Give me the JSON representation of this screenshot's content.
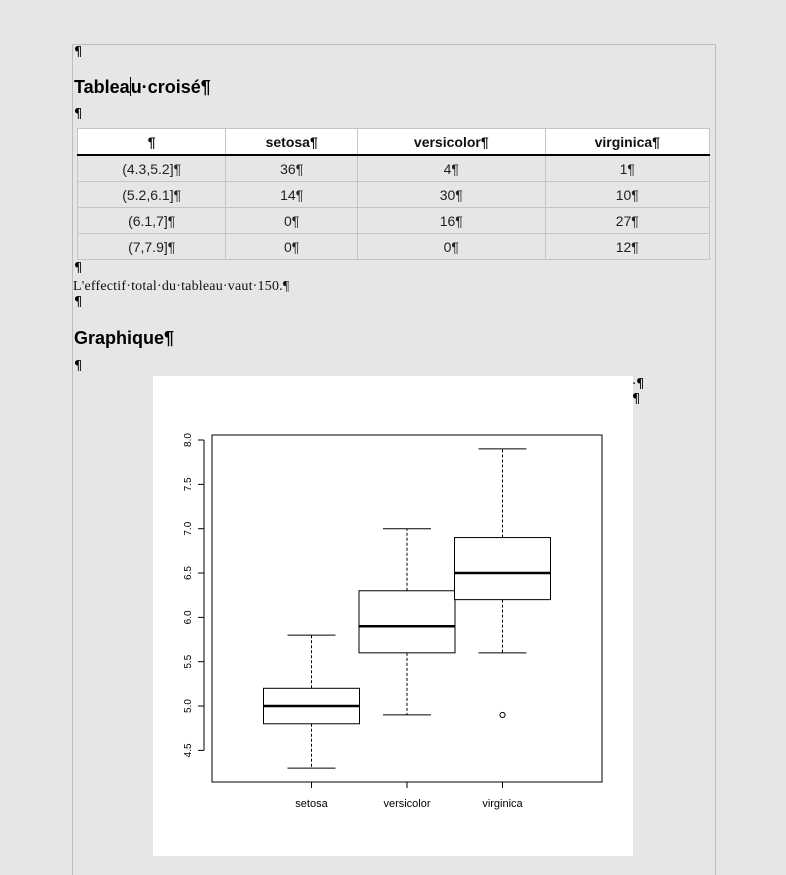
{
  "document": {
    "empty_para_marker": "¶",
    "section1": {
      "title_before_caret": "Tablea",
      "title_after_caret": "u·croisé¶"
    },
    "crosstab": {
      "headers": [
        "¶",
        "setosa¶",
        "versicolor¶",
        "virginica¶"
      ],
      "rows": [
        [
          "(4.3,5.2]¶",
          "36¶",
          "4¶",
          "1¶"
        ],
        [
          "(5.2,6.1]¶",
          "14¶",
          "30¶",
          "10¶"
        ],
        [
          "(6.1,7]¶",
          "0¶",
          "16¶",
          "27¶"
        ],
        [
          "(7,7.9]¶",
          "0¶",
          "0¶",
          "12¶"
        ]
      ]
    },
    "total_sentence": "L'effectif·total·du·tableau·vaut·150.¶",
    "section2": {
      "title": "Graphique¶"
    },
    "frame_marks": [
      "·¶",
      "¶"
    ]
  },
  "chart_data": {
    "type": "boxplot",
    "categories": [
      "setosa",
      "versicolor",
      "virginica"
    ],
    "y_ticks": [
      "4.5",
      "5.0",
      "5.5",
      "6.0",
      "6.5",
      "7.0",
      "7.5",
      "8.0"
    ],
    "ylim": [
      4.3,
      7.9
    ],
    "boxes": [
      {
        "category": "setosa",
        "whisker_low": 4.3,
        "q1": 4.8,
        "median": 5.0,
        "q3": 5.2,
        "whisker_high": 5.8,
        "outliers": []
      },
      {
        "category": "versicolor",
        "whisker_low": 4.9,
        "q1": 5.6,
        "median": 5.9,
        "q3": 6.3,
        "whisker_high": 7.0,
        "outliers": []
      },
      {
        "category": "virginica",
        "whisker_low": 5.6,
        "q1": 6.2,
        "median": 6.5,
        "q3": 6.9,
        "whisker_high": 7.9,
        "outliers": [
          4.9
        ]
      }
    ]
  }
}
